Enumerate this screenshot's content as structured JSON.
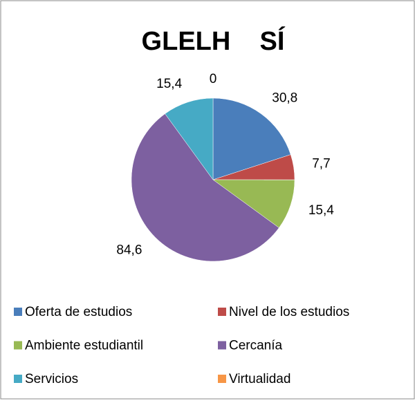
{
  "chart_data": {
    "type": "pie",
    "title": "GLELH    SÍ",
    "categories": [
      "Oferta de estudios",
      "Nivel de los estudios",
      "Ambiente estudiantil",
      "Cercanía",
      "Servicios",
      "Virtualidad"
    ],
    "values": [
      30.8,
      7.7,
      15.4,
      84.6,
      15.4,
      0
    ],
    "value_labels": [
      "30,8",
      "7,7",
      "15,4",
      "84,6",
      "15,4",
      "0"
    ],
    "colors": [
      "#4a7ebb",
      "#be4b48",
      "#98b954",
      "#7d60a0",
      "#46aac5",
      "#f79646"
    ],
    "legend": "bottom"
  }
}
